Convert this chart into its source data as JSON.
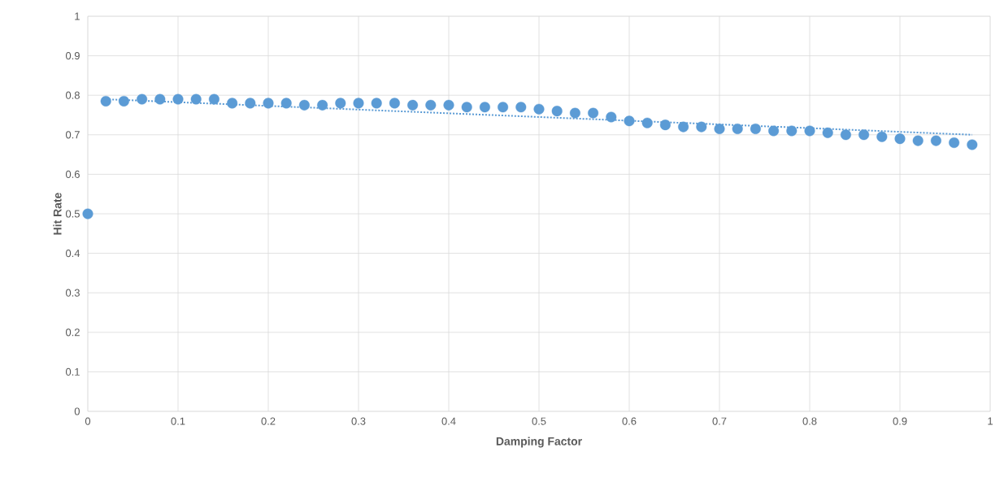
{
  "chart_data": {
    "type": "scatter",
    "xlabel": "Damping Factor",
    "ylabel": "Hit Rate",
    "xlim": [
      0,
      1
    ],
    "ylim": [
      0,
      1
    ],
    "xticks": [
      0,
      0.1,
      0.2,
      0.3,
      0.4,
      0.5,
      0.6,
      0.7,
      0.8,
      0.9,
      1
    ],
    "yticks": [
      0,
      0.1,
      0.2,
      0.3,
      0.4,
      0.5,
      0.6,
      0.7,
      0.8,
      0.9,
      1
    ],
    "grid": true,
    "marker": "circle",
    "series": [
      {
        "color": "#5b9bd5",
        "x": [
          0,
          0.02,
          0.04,
          0.06,
          0.08,
          0.1,
          0.12,
          0.14,
          0.16,
          0.18,
          0.2,
          0.22,
          0.24,
          0.26,
          0.28,
          0.3,
          0.32,
          0.34,
          0.36,
          0.38,
          0.4,
          0.42,
          0.44,
          0.46,
          0.48,
          0.5,
          0.52,
          0.54,
          0.56,
          0.58,
          0.6,
          0.62,
          0.64,
          0.66,
          0.68,
          0.7,
          0.72,
          0.74,
          0.76,
          0.78,
          0.8,
          0.82,
          0.84,
          0.86,
          0.88,
          0.9,
          0.92,
          0.94,
          0.96,
          0.98
        ],
        "values": [
          0.5,
          0.785,
          0.785,
          0.79,
          0.79,
          0.79,
          0.79,
          0.79,
          0.78,
          0.78,
          0.78,
          0.78,
          0.775,
          0.775,
          0.78,
          0.78,
          0.78,
          0.78,
          0.775,
          0.775,
          0.775,
          0.77,
          0.77,
          0.77,
          0.77,
          0.765,
          0.76,
          0.755,
          0.755,
          0.745,
          0.735,
          0.73,
          0.725,
          0.72,
          0.72,
          0.715,
          0.715,
          0.715,
          0.71,
          0.71,
          0.71,
          0.705,
          0.7,
          0.7,
          0.695,
          0.69,
          0.685,
          0.685,
          0.68,
          0.675
        ]
      },
      {
        "type": "line",
        "line_style": "dotted",
        "marker": "none",
        "color": "#5b9bd5",
        "x": [
          0.02,
          0.98
        ],
        "values": [
          0.79,
          0.7
        ]
      }
    ]
  }
}
